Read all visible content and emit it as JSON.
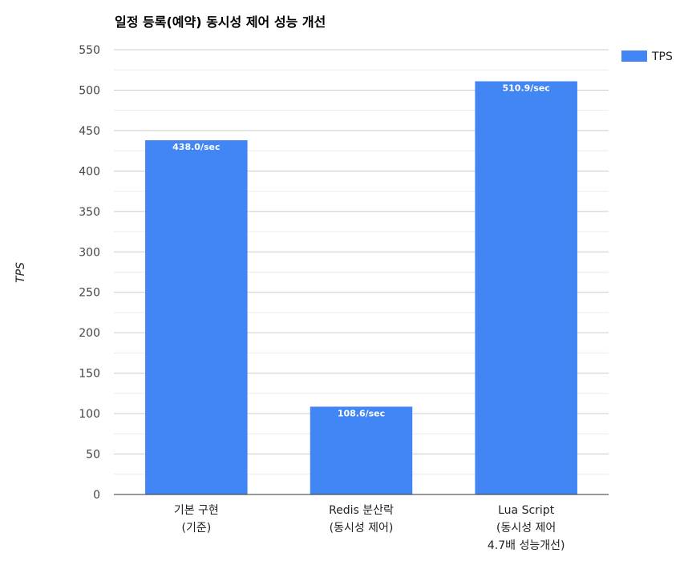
{
  "chart_data": {
    "type": "bar",
    "title": "일정 등록(예약) 동시성 제어 성능 개선",
    "xlabel": "",
    "ylabel": "TPS",
    "ylim": [
      0,
      550
    ],
    "yticks": [
      0,
      50,
      100,
      150,
      200,
      250,
      300,
      350,
      400,
      450,
      500,
      550
    ],
    "grid": true,
    "legend_position": "right",
    "categories": [
      [
        "기본 구현",
        "(기준)"
      ],
      [
        "Redis 분산락",
        "(동시성 제어)"
      ],
      [
        "Lua Script",
        "(동시성 제어",
        "4.7배 성능개선)"
      ]
    ],
    "series": [
      {
        "name": "TPS",
        "color": "#4285f4",
        "values": [
          438.0,
          108.6,
          510.9
        ],
        "data_labels": [
          "438.0/sec",
          "108.6/sec",
          "510.9/sec"
        ]
      }
    ]
  }
}
